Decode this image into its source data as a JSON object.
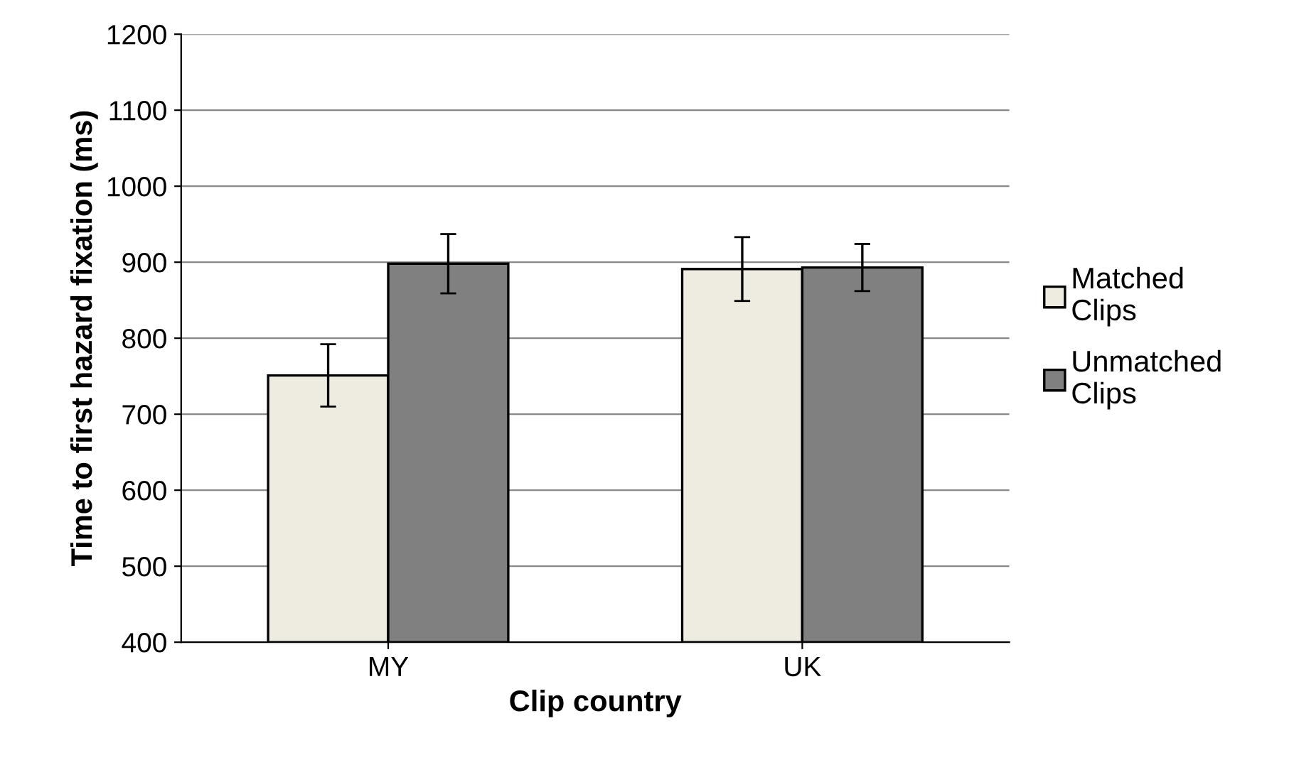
{
  "chart_data": {
    "type": "bar",
    "xlabel": "Clip country",
    "ylabel": "Time to first hazard fixation (ms)",
    "categories": [
      "MY",
      "UK"
    ],
    "series": [
      {
        "name": "Matched Clips",
        "color": "#eeebe0",
        "values": [
          751,
          891
        ],
        "errors": [
          41,
          42
        ]
      },
      {
        "name": "Unmatched Clips",
        "color": "#808080",
        "values": [
          898,
          893
        ],
        "errors": [
          39,
          31
        ]
      }
    ],
    "ylim": [
      400,
      1200
    ],
    "yticks": [
      400,
      500,
      600,
      700,
      800,
      900,
      1000,
      1100,
      1200
    ],
    "grid": "y",
    "legend": "right"
  }
}
